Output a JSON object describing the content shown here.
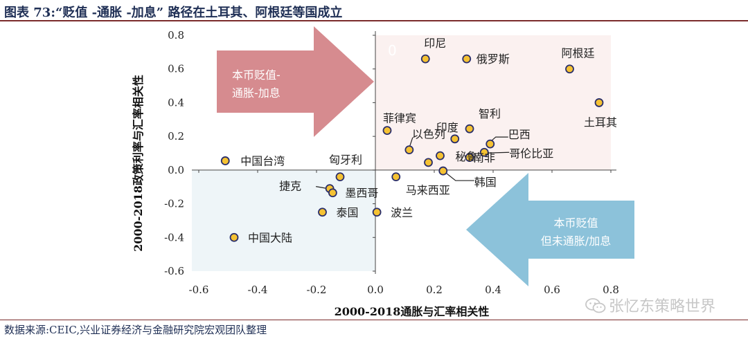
{
  "header": {
    "title": "图表 73:“贬值 -通胀 -加息” 路径在土耳其、阿根廷等国成立"
  },
  "footer": {
    "source": "数据来源:CEIC,兴业证券经济与金融研究院宏观团队整理"
  },
  "watermark": {
    "text": "张忆东策略世界",
    "icon": "wechat-icon"
  },
  "chart_data": {
    "type": "scatter",
    "xlabel": "2000-2018通胀与汇率相关性",
    "ylabel": "2000-2018政策利率与汇率相关性",
    "xlim": [
      -0.6,
      0.8
    ],
    "ylim": [
      -0.6,
      0.8
    ],
    "xticks": [
      "-0.6",
      "-0.4",
      "-0.2",
      "0.0",
      "0.2",
      "0.4",
      "0.6",
      "0.8"
    ],
    "yticks": [
      "0.8",
      "0.6",
      "0.4",
      "0.2",
      "0.0",
      "-0.2",
      "-0.4",
      "-0.6"
    ],
    "grid": false,
    "marker_color": "#f5c233",
    "marker_edge": "#2a2e6a",
    "quadrant_colors": {
      "upper_right": "#fbf1f0",
      "lower_left": "#eef5f8"
    },
    "quadrant_label": "0",
    "points": [
      {
        "label": "印尼",
        "x": 0.17,
        "y": 0.66
      },
      {
        "label": "俄罗斯",
        "x": 0.31,
        "y": 0.66
      },
      {
        "label": "阿根廷",
        "x": 0.66,
        "y": 0.6
      },
      {
        "label": "土耳其",
        "x": 0.76,
        "y": 0.4
      },
      {
        "label": "菲律宾",
        "x": 0.04,
        "y": 0.235
      },
      {
        "label": "印度",
        "x": 0.27,
        "y": 0.185
      },
      {
        "label": "智利",
        "x": 0.32,
        "y": 0.245
      },
      {
        "label": "巴西",
        "x": 0.39,
        "y": 0.155
      },
      {
        "label": "以色列",
        "x": 0.115,
        "y": 0.12
      },
      {
        "label": "秘鲁",
        "x": 0.22,
        "y": 0.085
      },
      {
        "label": "南非",
        "x": 0.32,
        "y": 0.075
      },
      {
        "label": "哥伦比亚",
        "x": 0.37,
        "y": 0.105
      },
      {
        "label": "",
        "x": 0.18,
        "y": 0.045
      },
      {
        "label": "韩国",
        "x": 0.23,
        "y": -0.005
      },
      {
        "label": "马来西亚",
        "x": 0.07,
        "y": -0.04
      },
      {
        "label": "中国台湾",
        "x": -0.51,
        "y": 0.055
      },
      {
        "label": "匈牙利",
        "x": -0.12,
        "y": -0.04
      },
      {
        "label": "捷克",
        "x": -0.155,
        "y": -0.11
      },
      {
        "label": "墨西哥",
        "x": -0.145,
        "y": -0.135
      },
      {
        "label": "泰国",
        "x": -0.18,
        "y": -0.25
      },
      {
        "label": "波兰",
        "x": 0.005,
        "y": -0.25
      },
      {
        "label": "中国大陆",
        "x": -0.48,
        "y": -0.4
      }
    ],
    "annotations": [
      {
        "text_lines": [
          "本币贬值-",
          "通胀-加息"
        ],
        "color": "#d68b8f",
        "direction": "right",
        "location": "upper-left"
      },
      {
        "text_lines": [
          "本币贬值",
          "但未通胀/加息"
        ],
        "color": "#8cc2da",
        "direction": "left",
        "location": "lower-right"
      }
    ]
  }
}
